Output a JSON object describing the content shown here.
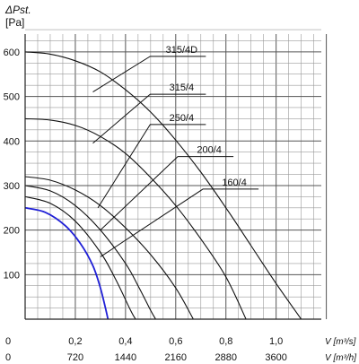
{
  "chart_data": {
    "type": "line",
    "y_axis": {
      "label_line1": "ΔPst.",
      "label_line2": "[Pa]",
      "ticks": [
        "100",
        "200",
        "300",
        "400",
        "500",
        "600"
      ],
      "tick_values": [
        100,
        200,
        300,
        400,
        500,
        600
      ],
      "range": [
        0,
        640
      ]
    },
    "x_axis": {
      "range": [
        0,
        1.18
      ],
      "ticks_m3s": [
        "0",
        "0,2",
        "0,4",
        "0,6",
        "0,8",
        "1,0"
      ],
      "tick_values_m3s": [
        0,
        0.2,
        0.4,
        0.6,
        0.8,
        1.0
      ],
      "unit_m3s": "V [m³/s]",
      "ticks_m3h": [
        "0",
        "720",
        "1440",
        "2160",
        "2880",
        "3600"
      ],
      "unit_m3h": "V [m³/h]"
    },
    "grid": true,
    "series": [
      {
        "name": "315/4D",
        "color": "#111111",
        "points": [
          [
            0,
            600
          ],
          [
            0.1,
            595
          ],
          [
            0.2,
            580
          ],
          [
            0.3,
            555
          ],
          [
            0.4,
            515
          ],
          [
            0.5,
            465
          ],
          [
            0.6,
            402
          ],
          [
            0.7,
            330
          ],
          [
            0.8,
            250
          ],
          [
            0.9,
            165
          ],
          [
            1.0,
            80
          ],
          [
            1.1,
            0
          ]
        ]
      },
      {
        "name": "315/4",
        "color": "#111111",
        "points": [
          [
            0,
            450
          ],
          [
            0.1,
            447
          ],
          [
            0.2,
            435
          ],
          [
            0.3,
            410
          ],
          [
            0.4,
            372
          ],
          [
            0.5,
            318
          ],
          [
            0.6,
            255
          ],
          [
            0.7,
            180
          ],
          [
            0.8,
            95
          ],
          [
            0.88,
            0
          ]
        ]
      },
      {
        "name": "250/4",
        "color": "#111111",
        "points": [
          [
            0,
            320
          ],
          [
            0.1,
            312
          ],
          [
            0.2,
            290
          ],
          [
            0.3,
            255
          ],
          [
            0.4,
            205
          ],
          [
            0.5,
            145
          ],
          [
            0.6,
            70
          ],
          [
            0.67,
            0
          ]
        ]
      },
      {
        "name": "200/4",
        "color": "#111111",
        "points": [
          [
            0,
            300
          ],
          [
            0.1,
            288
          ],
          [
            0.2,
            255
          ],
          [
            0.3,
            200
          ],
          [
            0.4,
            125
          ],
          [
            0.45,
            75
          ],
          [
            0.5,
            20
          ],
          [
            0.52,
            0
          ]
        ]
      },
      {
        "name": "160/4",
        "color": "#111111",
        "points": [
          [
            0,
            275
          ],
          [
            0.1,
            260
          ],
          [
            0.2,
            220
          ],
          [
            0.3,
            150
          ],
          [
            0.36,
            90
          ],
          [
            0.42,
            20
          ],
          [
            0.44,
            0
          ]
        ]
      },
      {
        "name": "",
        "color": "#1f1fd6",
        "points": [
          [
            0,
            250
          ],
          [
            0.08,
            240
          ],
          [
            0.16,
            210
          ],
          [
            0.22,
            170
          ],
          [
            0.27,
            120
          ],
          [
            0.3,
            70
          ],
          [
            0.32,
            25
          ],
          [
            0.33,
            0
          ]
        ]
      }
    ],
    "callouts": [
      {
        "label": "315/4D",
        "anchor": [
          0.27,
          510
        ],
        "tick_pa": 590,
        "tick_end_m3s": 0.72
      },
      {
        "label": "315/4",
        "anchor": [
          0.27,
          395
        ],
        "tick_pa": 505,
        "tick_end_m3s": 0.72
      },
      {
        "label": "250/4",
        "anchor": [
          0.29,
          250
        ],
        "tick_pa": 437,
        "tick_end_m3s": 0.72
      },
      {
        "label": "200/4",
        "anchor": [
          0.3,
          200
        ],
        "tick_pa": 365,
        "tick_end_m3s": 0.83
      },
      {
        "label": "160/4",
        "anchor": [
          0.3,
          140
        ],
        "tick_pa": 292,
        "tick_end_m3s": 0.93
      }
    ]
  }
}
